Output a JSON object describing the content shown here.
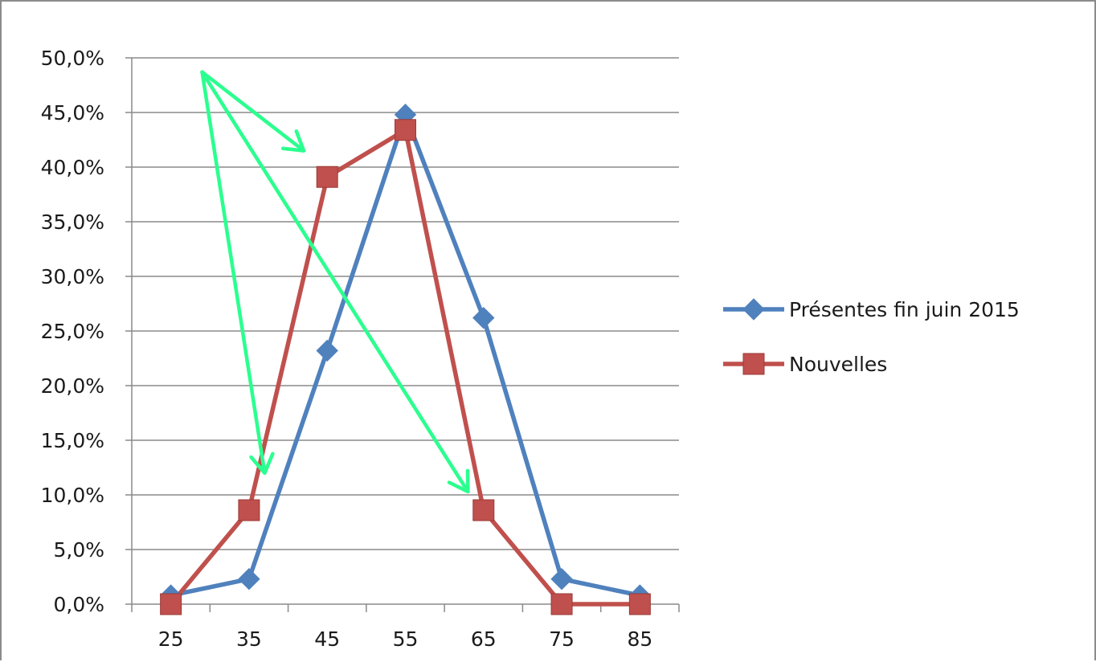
{
  "chart_data": {
    "type": "line",
    "x": [
      25,
      35,
      45,
      55,
      65,
      75,
      85
    ],
    "x_tick_labels": [
      "25",
      "35",
      "45",
      "55",
      "65",
      "75",
      "85"
    ],
    "ylim": [
      0,
      0.5
    ],
    "y_tick_labels": [
      "0,0%",
      "5,0%",
      "10,0%",
      "15,0%",
      "20,0%",
      "25,0%",
      "30,0%",
      "35,0%",
      "40,0%",
      "45,0%",
      "50,0%"
    ],
    "grid": true,
    "legend_position": "right",
    "series": [
      {
        "name": "Présentes fin juin 2015",
        "color": "#4f81bd",
        "marker": "diamond",
        "values": [
          0.008,
          0.023,
          0.232,
          0.448,
          0.262,
          0.023,
          0.008
        ]
      },
      {
        "name": "Nouvelles",
        "color": "#c0504d",
        "marker": "square",
        "values": [
          0.0,
          0.086,
          0.391,
          0.434,
          0.086,
          0.0,
          0.0
        ]
      }
    ],
    "annotations": {
      "arrows_color": "#2bff8f",
      "arrows_origin": [
        29,
        0.487
      ],
      "arrow_targets": [
        [
          37,
          0.12
        ],
        [
          42,
          0.415
        ],
        [
          63,
          0.103
        ]
      ]
    }
  }
}
